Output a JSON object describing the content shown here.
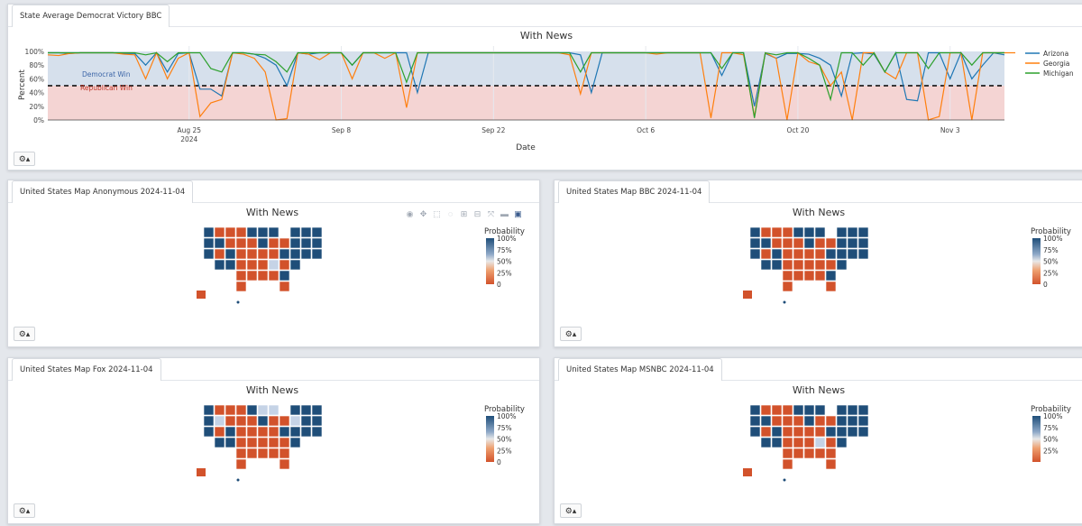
{
  "top_panel": {
    "tab_label": "State Average Democrat Victory BBC",
    "chart_data": {
      "type": "line",
      "title": "With News",
      "xlabel": "Date",
      "ylabel": "Percent",
      "ylim": [
        0,
        100
      ],
      "x_ticks": [
        {
          "label": "Aug 25",
          "sublabel": "2024",
          "day": 13
        },
        {
          "label": "Sep 8",
          "sublabel": "",
          "day": 27
        },
        {
          "label": "Sep 22",
          "sublabel": "",
          "day": 41
        },
        {
          "label": "Oct 6",
          "sublabel": "",
          "day": 55
        },
        {
          "label": "Oct 20",
          "sublabel": "",
          "day": 69
        },
        {
          "label": "Nov 3",
          "sublabel": "",
          "day": 83
        }
      ],
      "y_ticks": [
        "0%",
        "20%",
        "40%",
        "60%",
        "80%",
        "100%"
      ],
      "threshold": 50,
      "region_labels": {
        "upper": "Democrat Win",
        "lower": "Republican Win"
      },
      "legend_placement": "right",
      "series": [
        {
          "name": "Arizona",
          "color": "#1f77b4",
          "values": [
            98,
            98,
            97,
            98,
            98,
            98,
            98,
            97,
            97,
            80,
            98,
            70,
            97,
            98,
            45,
            45,
            35,
            98,
            98,
            96,
            90,
            80,
            50,
            98,
            96,
            98,
            98,
            98,
            80,
            98,
            98,
            98,
            98,
            98,
            40,
            98,
            98,
            98,
            98,
            98,
            98,
            98,
            98,
            98,
            98,
            98,
            98,
            98,
            98,
            95,
            40,
            98,
            98,
            98,
            98,
            98,
            98,
            98,
            98,
            98,
            98,
            98,
            65,
            98,
            98,
            20,
            97,
            90,
            97,
            97,
            96,
            90,
            80,
            35,
            97,
            98,
            96,
            70,
            98,
            30,
            28,
            98,
            98,
            60,
            98,
            60,
            80,
            98,
            95
          ]
        },
        {
          "name": "Georgia",
          "color": "#ff7f0e",
          "values": [
            95,
            94,
            97,
            98,
            98,
            98,
            98,
            96,
            95,
            60,
            98,
            60,
            90,
            98,
            5,
            25,
            30,
            98,
            96,
            90,
            70,
            0,
            2,
            98,
            96,
            88,
            98,
            98,
            60,
            98,
            98,
            90,
            98,
            18,
            98,
            98,
            98,
            98,
            98,
            98,
            98,
            98,
            98,
            98,
            98,
            98,
            98,
            98,
            95,
            38,
            98,
            98,
            98,
            98,
            98,
            98,
            96,
            98,
            98,
            98,
            98,
            3,
            98,
            98,
            95,
            5,
            98,
            90,
            0,
            98,
            85,
            80,
            50,
            70,
            0,
            98,
            98,
            70,
            60,
            98,
            98,
            0,
            5,
            98,
            98,
            0,
            98,
            98,
            98,
            98
          ]
        },
        {
          "name": "Michigan",
          "color": "#2ca02c",
          "values": [
            98,
            98,
            98,
            98,
            98,
            98,
            98,
            98,
            98,
            95,
            98,
            85,
            98,
            98,
            98,
            75,
            70,
            98,
            98,
            96,
            95,
            85,
            70,
            98,
            98,
            98,
            98,
            98,
            80,
            98,
            98,
            98,
            98,
            55,
            98,
            98,
            98,
            98,
            98,
            98,
            98,
            98,
            98,
            98,
            98,
            98,
            98,
            98,
            98,
            70,
            98,
            98,
            98,
            98,
            98,
            98,
            98,
            98,
            98,
            98,
            98,
            98,
            75,
            98,
            98,
            3,
            98,
            95,
            98,
            98,
            90,
            80,
            30,
            98,
            98,
            80,
            98,
            70,
            98,
            98,
            98,
            75,
            98,
            98,
            98,
            80,
            98,
            98,
            98
          ]
        }
      ]
    }
  },
  "maps": [
    {
      "tab_label": "United States Map Anonymous 2024-11-04",
      "title": "With News",
      "colorbar_title": "Probability",
      "colorbar_ticks": [
        "100%",
        "75%",
        "50%",
        "25%",
        "0"
      ],
      "variant": "anon",
      "show_modebar": true
    },
    {
      "tab_label": "United States Map BBC 2024-11-04",
      "title": "With News",
      "colorbar_title": "Probability",
      "colorbar_ticks": [
        "100%",
        "75%",
        "50%",
        "25%",
        "0"
      ],
      "variant": "bbc",
      "show_modebar": false
    },
    {
      "tab_label": "United States Map Fox 2024-11-04",
      "title": "With News",
      "colorbar_title": "Probability",
      "colorbar_ticks": [
        "100%",
        "75%",
        "50%",
        "25%",
        "0"
      ],
      "variant": "fox",
      "show_modebar": false
    },
    {
      "tab_label": "United States Map MSNBC 2024-11-04",
      "title": "With News",
      "colorbar_title": "Probability",
      "colorbar_ticks": [
        "100%",
        "75%",
        "50%",
        "25%"
      ],
      "variant": "msnbc",
      "show_modebar": false
    }
  ],
  "controls": {
    "gear_label": "⚙▴"
  },
  "colors": {
    "dem": "#1f4e79",
    "rep": "#d2522b",
    "light": "#c5d3e6",
    "dem_region": "#d6e0ec",
    "rep_region": "#f4d4d3"
  }
}
